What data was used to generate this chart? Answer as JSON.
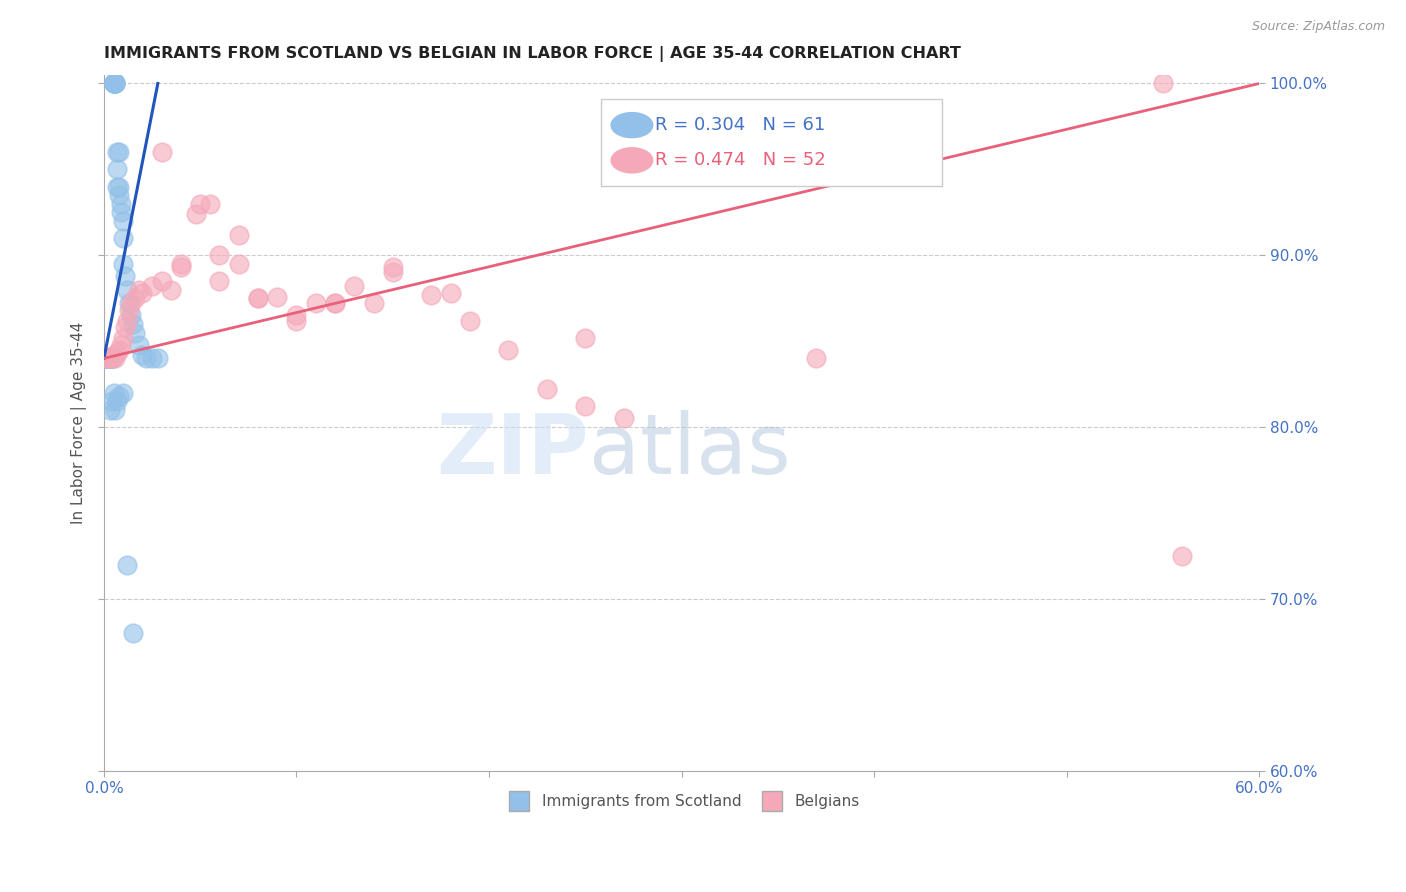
{
  "title": "IMMIGRANTS FROM SCOTLAND VS BELGIAN IN LABOR FORCE | AGE 35-44 CORRELATION CHART",
  "source": "Source: ZipAtlas.com",
  "ylabel": "In Labor Force | Age 35-44",
  "xlim": [
    0.0,
    0.6
  ],
  "ylim": [
    0.6,
    1.005
  ],
  "yticks": [
    0.6,
    0.7,
    0.8,
    0.9,
    1.0
  ],
  "xticks": [
    0.0,
    0.1,
    0.2,
    0.3,
    0.4,
    0.5,
    0.6
  ],
  "scotland_R": 0.304,
  "scotland_N": 61,
  "belgian_R": 0.474,
  "belgian_N": 52,
  "scotland_color": "#92C0E8",
  "belgian_color": "#F4A8B8",
  "scotland_line_color": "#2255BB",
  "belgian_line_color": "#E8607A",
  "legend_label_scotland": "Immigrants from Scotland",
  "legend_label_belgian": "Belgians",
  "axis_label_color": "#4472C4",
  "tick_color": "#4472C4",
  "background_color": "#FFFFFF",
  "sc_x": [
    0.001,
    0.001,
    0.001,
    0.001,
    0.002,
    0.002,
    0.002,
    0.002,
    0.002,
    0.003,
    0.003,
    0.003,
    0.003,
    0.003,
    0.003,
    0.003,
    0.004,
    0.004,
    0.004,
    0.004,
    0.004,
    0.005,
    0.005,
    0.005,
    0.005,
    0.005,
    0.006,
    0.006,
    0.006,
    0.006,
    0.007,
    0.007,
    0.007,
    0.008,
    0.008,
    0.008,
    0.009,
    0.009,
    0.01,
    0.01,
    0.01,
    0.011,
    0.012,
    0.013,
    0.014,
    0.015,
    0.016,
    0.018,
    0.02,
    0.022,
    0.025,
    0.028,
    0.003,
    0.004,
    0.005,
    0.006,
    0.007,
    0.008,
    0.01,
    0.012,
    0.015
  ],
  "sc_y": [
    0.84,
    0.84,
    0.84,
    0.84,
    0.84,
    0.84,
    0.84,
    0.84,
    0.84,
    0.84,
    0.84,
    0.84,
    0.84,
    0.84,
    0.84,
    0.84,
    0.84,
    0.84,
    0.84,
    0.84,
    0.84,
    1.0,
    1.0,
    1.0,
    1.0,
    1.0,
    1.0,
    1.0,
    1.0,
    1.0,
    0.96,
    0.95,
    0.94,
    0.96,
    0.94,
    0.935,
    0.93,
    0.925,
    0.92,
    0.91,
    0.895,
    0.888,
    0.88,
    0.872,
    0.865,
    0.86,
    0.855,
    0.848,
    0.842,
    0.84,
    0.84,
    0.84,
    0.81,
    0.815,
    0.82,
    0.81,
    0.815,
    0.818,
    0.82,
    0.72,
    0.68
  ],
  "be_x": [
    0.002,
    0.003,
    0.004,
    0.005,
    0.006,
    0.007,
    0.008,
    0.009,
    0.01,
    0.011,
    0.012,
    0.013,
    0.014,
    0.016,
    0.018,
    0.02,
    0.025,
    0.03,
    0.035,
    0.04,
    0.048,
    0.055,
    0.06,
    0.07,
    0.08,
    0.09,
    0.1,
    0.11,
    0.12,
    0.13,
    0.14,
    0.15,
    0.17,
    0.19,
    0.21,
    0.23,
    0.25,
    0.27,
    0.03,
    0.04,
    0.05,
    0.06,
    0.07,
    0.08,
    0.1,
    0.12,
    0.15,
    0.18,
    0.25,
    0.37,
    0.55,
    0.56
  ],
  "be_y": [
    0.84,
    0.84,
    0.84,
    0.842,
    0.84,
    0.843,
    0.845,
    0.848,
    0.852,
    0.858,
    0.862,
    0.868,
    0.872,
    0.875,
    0.88,
    0.878,
    0.882,
    0.885,
    0.88,
    0.893,
    0.924,
    0.93,
    0.885,
    0.895,
    0.875,
    0.876,
    0.862,
    0.872,
    0.872,
    0.882,
    0.872,
    0.893,
    0.877,
    0.862,
    0.845,
    0.822,
    0.812,
    0.805,
    0.96,
    0.895,
    0.93,
    0.9,
    0.912,
    0.875,
    0.865,
    0.872,
    0.89,
    0.878,
    0.852,
    0.84,
    1.0,
    0.725
  ]
}
